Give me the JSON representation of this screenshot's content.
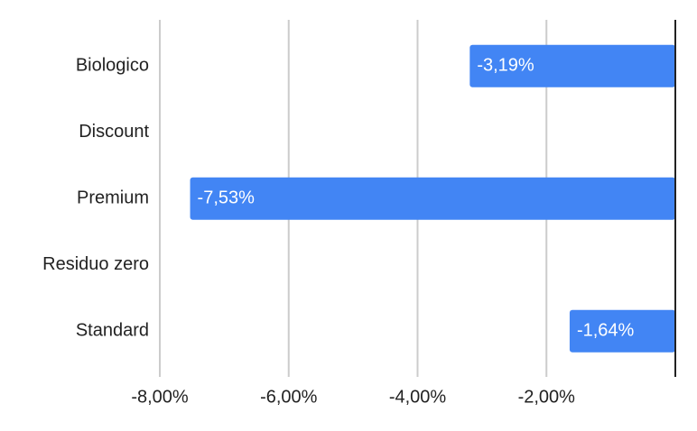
{
  "chart_data": {
    "type": "hbar",
    "categories": [
      "Biologico",
      "Discount",
      "Premium",
      "Residuo zero",
      "Standard"
    ],
    "values": [
      -3.19,
      null,
      -7.53,
      null,
      -1.64
    ],
    "value_labels": [
      "-3,19%",
      null,
      "-7,53%",
      null,
      "-1,64%"
    ],
    "color": "#4285f4",
    "xlim": [
      -8,
      0
    ],
    "xticks": [
      {
        "value": -8,
        "label": "-8,00%"
      },
      {
        "value": -6,
        "label": "-6,00%"
      },
      {
        "value": -4,
        "label": "-4,00%"
      },
      {
        "value": -2,
        "label": "-2,00%"
      }
    ],
    "grid": true
  }
}
